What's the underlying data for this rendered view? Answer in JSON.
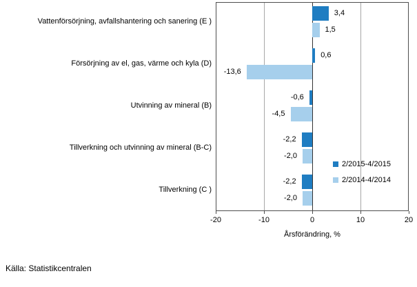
{
  "source": "Källa: Statistikcentralen",
  "chart_data": {
    "type": "bar",
    "orientation": "horizontal",
    "title": "",
    "xlabel": "Årsförändring, %",
    "xlim": [
      -20,
      20
    ],
    "xticks": [
      -20,
      -10,
      0,
      10,
      20
    ],
    "xtick_labels": [
      "-20",
      "-10",
      "0",
      "10",
      "20"
    ],
    "gridlines_at": [
      -10,
      10
    ],
    "grid": true,
    "legend_position": "middle-right",
    "categories": [
      "Vattenförsörjning, avfallshantering och sanering (E )",
      "Försörjning av el, gas, värme och kyla (D)",
      "Utvinning av mineral (B)",
      "Tillverkning och utvinning av mineral (B-C)",
      "Tillverkning (C )"
    ],
    "series": [
      {
        "name": "2/2015-4/2015",
        "color": "#1f7dc2",
        "values": [
          3.4,
          0.6,
          -0.6,
          -2.2,
          -2.2
        ],
        "value_labels": [
          "3,4",
          "0,6",
          "-0,6",
          "-2,2",
          "-2,2"
        ]
      },
      {
        "name": "2/2014-4/2014",
        "color": "#a6cfec",
        "values": [
          1.5,
          -13.6,
          -4.5,
          -2.0,
          -2.0
        ],
        "value_labels": [
          "1,5",
          "-13,6",
          "-4,5",
          "-2,0",
          "-2,0"
        ]
      }
    ],
    "colors": {
      "axis_border": "#4d4d4d",
      "gridline": "#a6a6a6",
      "zero_line": "#333333",
      "text": "#000000"
    }
  }
}
